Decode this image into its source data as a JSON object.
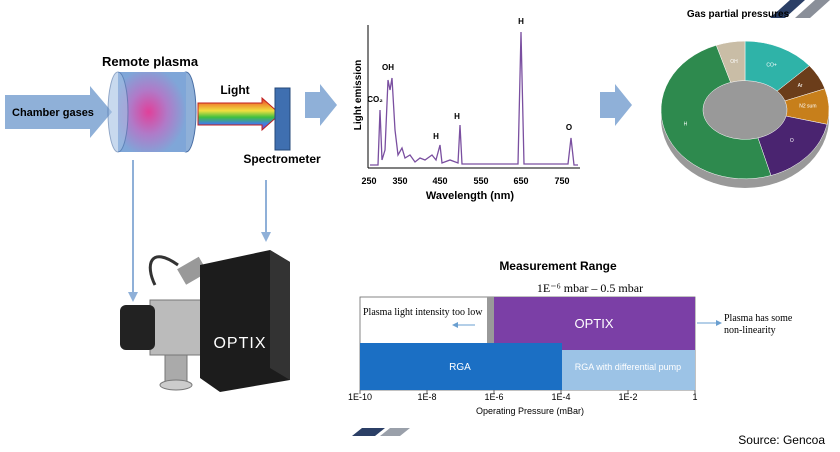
{
  "flow": {
    "chamber_gases": "Chamber gases",
    "remote_plasma": "Remote plasma",
    "light": "Light",
    "spectrometer": "Spectrometer",
    "device_logo": "OPTIX"
  },
  "spectrum": {
    "y_label": "Light emission",
    "x_label": "Wavelength (nm)",
    "x_ticks": [
      "250",
      "350",
      "450",
      "550",
      "650",
      "750"
    ],
    "peaks": [
      "CO₂",
      "OH",
      "H",
      "H",
      "H",
      "O"
    ]
  },
  "gas_chart": {
    "title": "Gas partial pressures",
    "segments": [
      "CO+",
      "Ar",
      "N2 sum",
      "O",
      "H",
      "OH"
    ]
  },
  "measurement_range": {
    "title": "Measurement Range",
    "span_label": "1E⁻⁶ mbar – 0.5 mbar",
    "left_note": "Plasma light intensity too low",
    "right_note": [
      "Plasma has some",
      "non-linearity"
    ],
    "bars": [
      "OPTIX",
      "RGA",
      "RGA with differential pump"
    ],
    "ticks": [
      "1E-10",
      "1E-8",
      "1E-6",
      "1E-4",
      "1E-2",
      "1"
    ],
    "axis_label": "Operating Pressure (mBar)"
  },
  "source": "Source: Gencoa"
}
